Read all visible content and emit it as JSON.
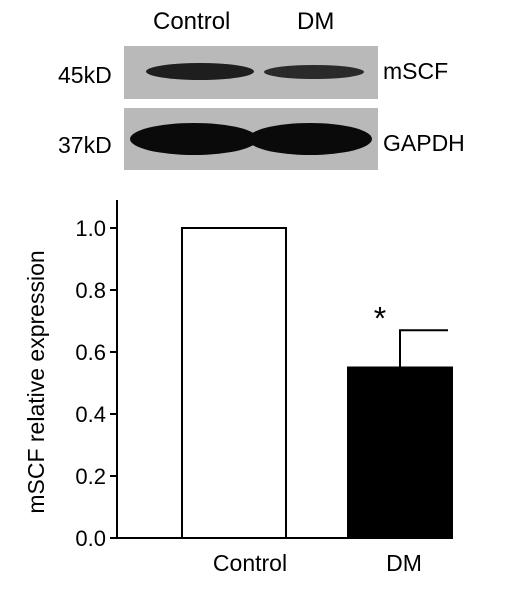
{
  "blot": {
    "columns": [
      "Control",
      "DM"
    ],
    "rows": [
      {
        "size": "45kD",
        "protein": "mSCF"
      },
      {
        "size": "37kD",
        "protein": "GAPDH"
      }
    ]
  },
  "chart_data": {
    "type": "bar",
    "categories": [
      "Control",
      "DM"
    ],
    "values": [
      1.0,
      0.55
    ],
    "errors": [
      null,
      0.12
    ],
    "significance": [
      "",
      "*"
    ],
    "bar_colors": [
      "#ffffff",
      "#000000"
    ],
    "title": "",
    "xlabel": "",
    "ylabel": "mSCF relative expression",
    "ylim": [
      0,
      1.0
    ],
    "yticks": [
      "0.0",
      "0.2",
      "0.4",
      "0.6",
      "0.8",
      "1.0"
    ],
    "grid": false
  }
}
